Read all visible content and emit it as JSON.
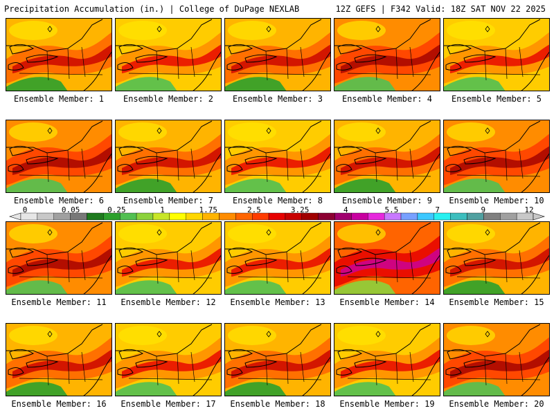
{
  "header": {
    "left": "Precipitation Accumulation (in.) | College of DuPage NEXLAB",
    "right": "12Z GEFS | F342 Valid: 18Z SAT NOV 22 2025"
  },
  "members": [
    {
      "label": "Ensemble Member: 1",
      "tone": "moderate"
    },
    {
      "label": "Ensemble Member: 2",
      "tone": "light"
    },
    {
      "label": "Ensemble Member: 3",
      "tone": "moderate"
    },
    {
      "label": "Ensemble Member: 4",
      "tone": "heavy"
    },
    {
      "label": "Ensemble Member: 5",
      "tone": "light"
    },
    {
      "label": "Ensemble Member: 6",
      "tone": "heavy"
    },
    {
      "label": "Ensemble Member: 7",
      "tone": "moderate"
    },
    {
      "label": "Ensemble Member: 8",
      "tone": "light"
    },
    {
      "label": "Ensemble Member: 9",
      "tone": "moderate"
    },
    {
      "label": "Ensemble Member: 10",
      "tone": "heavy"
    },
    {
      "label": "Ensemble Member: 11",
      "tone": "heavy"
    },
    {
      "label": "Ensemble Member: 12",
      "tone": "light"
    },
    {
      "label": "Ensemble Member: 13",
      "tone": "light"
    },
    {
      "label": "Ensemble Member: 14",
      "tone": "extreme"
    },
    {
      "label": "Ensemble Member: 15",
      "tone": "moderate"
    },
    {
      "label": "Ensemble Member: 16",
      "tone": "moderate"
    },
    {
      "label": "Ensemble Member: 17",
      "tone": "light"
    },
    {
      "label": "Ensemble Member: 18",
      "tone": "moderate"
    },
    {
      "label": "Ensemble Member: 19",
      "tone": "light"
    },
    {
      "label": "Ensemble Member: 20",
      "tone": "heavy"
    }
  ],
  "colorbar": {
    "labels": [
      "0",
      "0.05",
      "0.25",
      "1",
      "1.75",
      "2.5",
      "3.25",
      "4",
      "5.5",
      "7",
      "9",
      "12"
    ],
    "colors": [
      "#e6e6e6",
      "#c8c8c8",
      "#a0a0a0",
      "#787878",
      "#1e7a1e",
      "#2ca02c",
      "#52c052",
      "#8cd23c",
      "#c8e628",
      "#ffff00",
      "#ffd700",
      "#ffb400",
      "#ff8c00",
      "#ff6400",
      "#ff3c00",
      "#e60000",
      "#c80000",
      "#a00000",
      "#8c0032",
      "#a0006e",
      "#c800a0",
      "#e628dc",
      "#c878ff",
      "#78a0ff",
      "#3cc8ff",
      "#28f0f0",
      "#3cbebe",
      "#50a0a0",
      "#808080",
      "#a0a0a0",
      "#c8c8c8"
    ]
  },
  "tone_colors": {
    "light": {
      "base": "#ffcc00",
      "warm": "#ff8c00",
      "wet": "#e60000",
      "green": "#52c052"
    },
    "moderate": {
      "base": "#ffb400",
      "warm": "#ff6400",
      "wet": "#c80000",
      "green": "#2ca02c"
    },
    "heavy": {
      "base": "#ff8c00",
      "warm": "#ff3c00",
      "wet": "#a00000",
      "green": "#52c052"
    },
    "extreme": {
      "base": "#ff6400",
      "warm": "#e60000",
      "wet": "#c800a0",
      "green": "#8cd23c"
    }
  }
}
